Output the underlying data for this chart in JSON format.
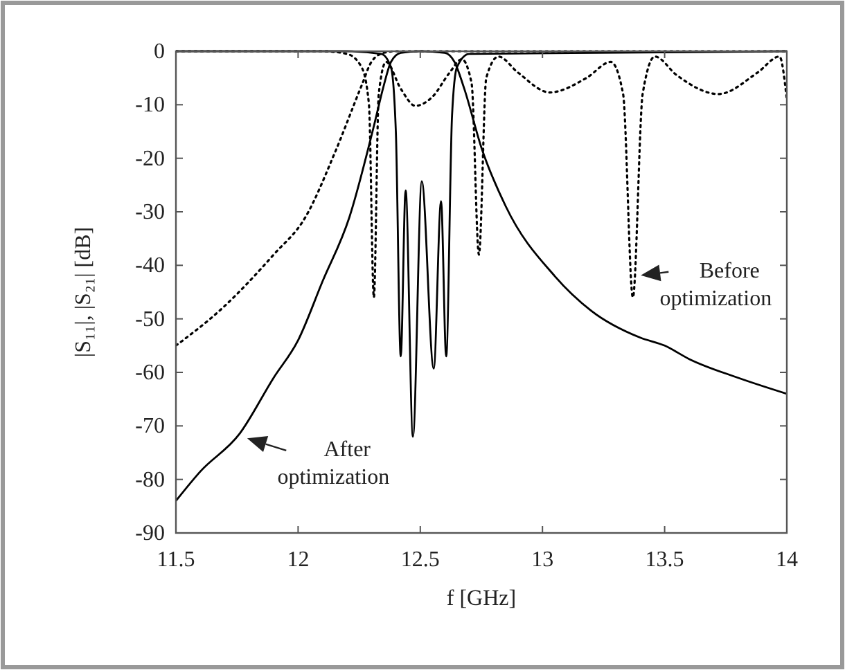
{
  "chart_data": {
    "type": "line",
    "xlabel": "f [GHz]",
    "ylabel": "|S₁₁|, |S₂₁| [dB]",
    "xlim": [
      11.5,
      14
    ],
    "xticks": [
      11.5,
      12,
      12.5,
      13,
      13.5,
      14
    ],
    "ylim": [
      -90,
      0
    ],
    "yticks": [
      -90,
      -80,
      -70,
      -60,
      -50,
      -40,
      -30,
      -20,
      -10,
      0
    ],
    "grid": false,
    "series": [
      {
        "color": "#000000",
        "line_style": "solid",
        "x": [
          11.5,
          11.6,
          11.76,
          11.9,
          12.0,
          12.1,
          12.21,
          12.31,
          12.35,
          12.38,
          12.42,
          12.5,
          12.6,
          12.64,
          12.68,
          12.75,
          12.85,
          13.05,
          13.2,
          13.4,
          13.5,
          13.6,
          13.8,
          14
        ],
        "values": [
          -84,
          -78.5,
          -71.5,
          -61,
          -54,
          -43,
          -31,
          -14,
          -6.5,
          -2,
          -0.3,
          0,
          -0.3,
          -2,
          -7,
          -18,
          -29,
          -42,
          -48.5,
          -53.5,
          -55,
          -57.5,
          -61,
          -64
        ]
      },
      {
        "color": "#000000",
        "line_style": "solid",
        "x": [
          11.5,
          12.2,
          12.34,
          12.38,
          12.4,
          12.42,
          12.44,
          12.47,
          12.506,
          12.555,
          12.585,
          12.606,
          12.63,
          12.65,
          12.7,
          14
        ],
        "values": [
          0,
          0,
          -0.5,
          -3,
          -15,
          -57,
          -26,
          -72,
          -24.3,
          -59.3,
          -28,
          -57,
          -12,
          -3,
          -0.5,
          0
        ]
      },
      {
        "color": "#000000",
        "line_style": "dotted",
        "x": [
          11.5,
          11.69,
          11.9,
          12.03,
          12.15,
          12.26,
          12.3,
          12.35,
          12.4,
          14
        ],
        "values": [
          -55,
          -48,
          -38,
          -31,
          -19,
          -6.4,
          -2,
          -0.3,
          0,
          0
        ]
      },
      {
        "color": "#000000",
        "line_style": "dotted",
        "x": [
          11.5,
          12.1,
          12.2,
          12.26,
          12.29,
          12.31,
          12.33,
          12.36,
          12.42,
          12.48,
          12.55,
          12.62,
          12.67,
          12.71,
          12.74,
          12.77,
          12.82,
          12.9,
          13.03,
          13.18,
          13.28,
          13.33,
          13.37,
          13.41,
          13.46,
          13.55,
          13.72,
          13.88,
          13.97,
          14
        ],
        "values": [
          0,
          0,
          -0.5,
          -3,
          -10,
          -46,
          -8,
          -2,
          -7,
          -10.2,
          -8.5,
          -4,
          -1.5,
          -6,
          -38,
          -5,
          -1,
          -4,
          -7.7,
          -5,
          -2,
          -8,
          -46,
          -8,
          -1,
          -4.5,
          -8,
          -4,
          -1,
          -9
        ]
      }
    ],
    "annotations": [
      {
        "text": "After optimization",
        "x": 11.77,
        "y": -72
      },
      {
        "text": "Before optimization",
        "x": 13.38,
        "y": -42
      }
    ]
  }
}
